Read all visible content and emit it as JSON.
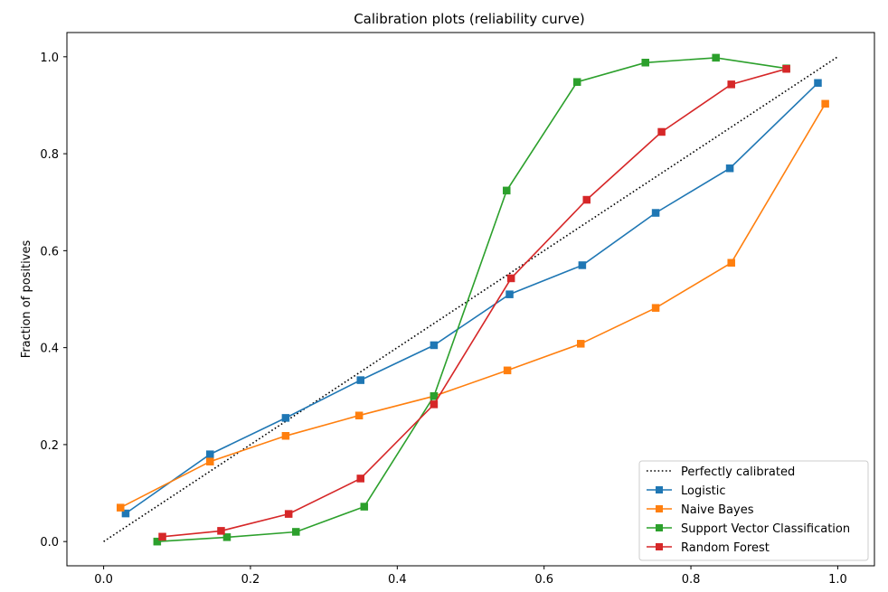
{
  "chart_data": {
    "type": "line",
    "title": "Calibration plots  (reliability curve)",
    "xlabel": "",
    "ylabel": "Fraction of positives",
    "xlim": [
      -0.05,
      1.05
    ],
    "ylim": [
      -0.05,
      1.05
    ],
    "xticks": [
      0.0,
      0.2,
      0.4,
      0.6,
      0.8,
      1.0
    ],
    "yticks": [
      0.0,
      0.2,
      0.4,
      0.6,
      0.8,
      1.0
    ],
    "xtick_labels": [
      "0.0",
      "0.2",
      "0.4",
      "0.6",
      "0.8",
      "1.0"
    ],
    "ytick_labels": [
      "0.0",
      "0.2",
      "0.4",
      "0.6",
      "0.8",
      "1.0"
    ],
    "grid": false,
    "legend_position": "bottom-right",
    "series": [
      {
        "name": "Perfectly calibrated",
        "color": "#000000",
        "style": "dotted",
        "marker": "none",
        "x": [
          0.0,
          1.0
        ],
        "y": [
          0.0,
          1.0
        ]
      },
      {
        "name": "Logistic",
        "color": "#1f77b4",
        "style": "solid",
        "marker": "square",
        "x": [
          0.03,
          0.145,
          0.248,
          0.35,
          0.45,
          0.553,
          0.652,
          0.752,
          0.853,
          0.973
        ],
        "y": [
          0.058,
          0.18,
          0.255,
          0.333,
          0.405,
          0.51,
          0.57,
          0.678,
          0.77,
          0.946
        ]
      },
      {
        "name": "Naive Bayes",
        "color": "#ff7f0e",
        "style": "solid",
        "marker": "square",
        "x": [
          0.023,
          0.145,
          0.248,
          0.348,
          0.45,
          0.55,
          0.65,
          0.752,
          0.855,
          0.983
        ],
        "y": [
          0.07,
          0.165,
          0.218,
          0.26,
          0.3,
          0.353,
          0.408,
          0.482,
          0.575,
          0.903
        ]
      },
      {
        "name": "Support Vector Classification",
        "color": "#2ca02c",
        "style": "solid",
        "marker": "square",
        "x": [
          0.073,
          0.168,
          0.262,
          0.355,
          0.45,
          0.549,
          0.645,
          0.738,
          0.834,
          0.93
        ],
        "y": [
          0.0,
          0.009,
          0.02,
          0.072,
          0.3,
          0.724,
          0.948,
          0.988,
          0.998,
          0.976
        ]
      },
      {
        "name": "Random Forest",
        "color": "#d62728",
        "style": "solid",
        "marker": "square",
        "x": [
          0.08,
          0.16,
          0.252,
          0.35,
          0.45,
          0.555,
          0.658,
          0.76,
          0.855,
          0.93
        ],
        "y": [
          0.01,
          0.022,
          0.057,
          0.13,
          0.283,
          0.543,
          0.705,
          0.845,
          0.943,
          0.975
        ]
      }
    ]
  }
}
